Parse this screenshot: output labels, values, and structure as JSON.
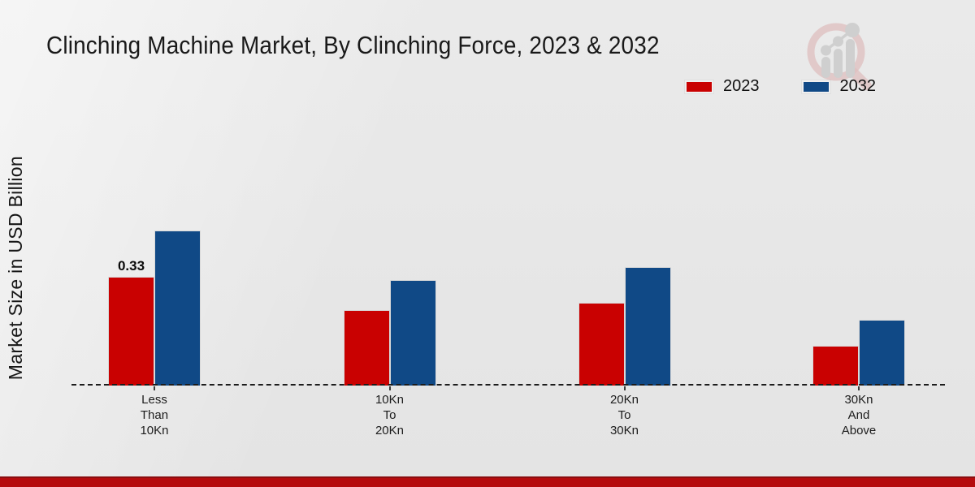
{
  "page": {
    "title": "Clinching Machine Market, By Clinching Force, 2023 & 2032"
  },
  "axis": {
    "ylabel": "Market Size in USD Billion"
  },
  "legend": {
    "items": [
      {
        "label": "2023",
        "color": "#c90101"
      },
      {
        "label": "2032",
        "color": "#104986"
      }
    ]
  },
  "chart_data": {
    "type": "bar",
    "title": "Clinching Machine Market, By Clinching Force, 2023 & 2032",
    "ylabel": "Market Size in USD Billion",
    "xlabel": "",
    "categories": [
      "Less Than 10Kn",
      "10Kn To 20Kn",
      "20Kn To 30Kn",
      "30Kn And Above"
    ],
    "category_lines": [
      [
        "Less",
        "Than",
        "10Kn"
      ],
      [
        "10Kn",
        "To",
        "20Kn"
      ],
      [
        "20Kn",
        "To",
        "30Kn"
      ],
      [
        "30Kn",
        "And",
        "Above"
      ]
    ],
    "series": [
      {
        "name": "2023",
        "color": "#c90101",
        "values": [
          0.33,
          0.23,
          0.25,
          0.12
        ]
      },
      {
        "name": "2032",
        "color": "#104986",
        "values": [
          0.47,
          0.32,
          0.36,
          0.2
        ]
      }
    ],
    "value_labels": [
      {
        "series_index": 0,
        "category_index": 0,
        "text": "0.33"
      }
    ],
    "ylim": [
      0,
      0.5
    ],
    "grid": false,
    "baseline_style": "dashed",
    "legend_position": "top-right"
  },
  "colors": {
    "series_2023": "#c90101",
    "series_2032": "#104986",
    "footer": "#b50b0d",
    "watermark_ring": "#dec0c0",
    "watermark_bars": "#cfcfcf"
  },
  "watermark": {
    "name": "market-research-logo"
  }
}
